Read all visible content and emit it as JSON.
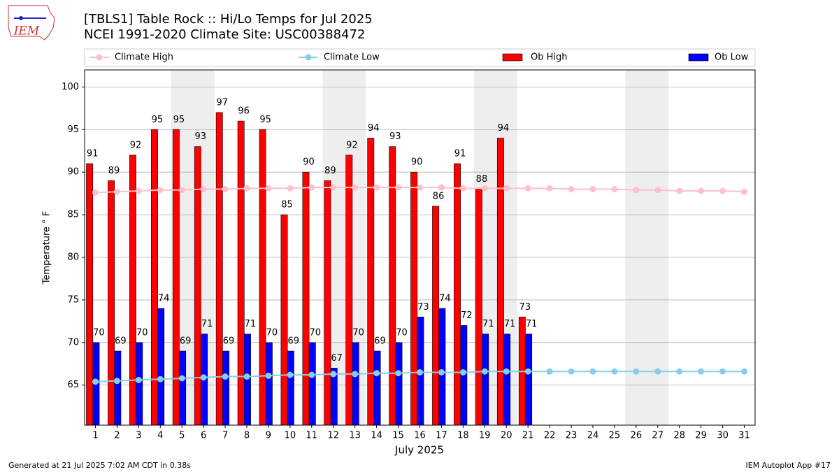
{
  "chart_data": {
    "type": "bar",
    "title": "[TBLS1] Table Rock :: Hi/Lo Temps for Jul 2025",
    "subtitle": "NCEI 1991-2020 Climate Site: USC00388472",
    "x_label": "July 2025",
    "y_label": "Temperature ° F",
    "footer_left": "Generated at 21 Jul 2025 7:02 AM CDT in 0.38s",
    "footer_right": "IEM Autoplot App #17",
    "logo_text": "IEM",
    "x": [
      1,
      2,
      3,
      4,
      5,
      6,
      7,
      8,
      9,
      10,
      11,
      12,
      13,
      14,
      15,
      16,
      17,
      18,
      19,
      20,
      21,
      22,
      23,
      24,
      25,
      26,
      27,
      28,
      29,
      30,
      31
    ],
    "xlim": [
      0.5,
      31.5
    ],
    "xticks": [
      1,
      2,
      3,
      4,
      5,
      6,
      7,
      8,
      9,
      10,
      11,
      12,
      13,
      14,
      15,
      16,
      17,
      18,
      19,
      20,
      21,
      22,
      23,
      24,
      25,
      26,
      27,
      28,
      29,
      30,
      31
    ],
    "ylim": [
      60.3,
      102
    ],
    "yticks": [
      65,
      70,
      75,
      80,
      85,
      90,
      95,
      100
    ],
    "grid": true,
    "weekend_spans": [
      [
        4.5,
        6.5
      ],
      [
        11.5,
        13.5
      ],
      [
        18.5,
        20.5
      ],
      [
        25.5,
        27.5
      ]
    ],
    "series": [
      {
        "name": "Climate High",
        "kind": "line",
        "color": "#ffc0cb",
        "values": [
          87.6,
          87.7,
          87.8,
          87.9,
          87.9,
          88.0,
          88.0,
          88.1,
          88.1,
          88.1,
          88.2,
          88.2,
          88.2,
          88.2,
          88.2,
          88.2,
          88.2,
          88.1,
          88.1,
          88.1,
          88.1,
          88.1,
          88.0,
          88.0,
          88.0,
          87.9,
          87.9,
          87.8,
          87.8,
          87.8,
          87.7
        ]
      },
      {
        "name": "Climate Low",
        "kind": "line",
        "color": "#87ceeb",
        "values": [
          65.4,
          65.5,
          65.6,
          65.7,
          65.8,
          65.9,
          66.0,
          66.0,
          66.1,
          66.2,
          66.2,
          66.3,
          66.3,
          66.4,
          66.4,
          66.5,
          66.5,
          66.5,
          66.6,
          66.6,
          66.6,
          66.6,
          66.6,
          66.6,
          66.6,
          66.6,
          66.6,
          66.6,
          66.6,
          66.6,
          66.6
        ]
      },
      {
        "name": "Ob High",
        "kind": "bar",
        "color": "#ff0000",
        "values": [
          91,
          89,
          92,
          95,
          95,
          93,
          97,
          96,
          95,
          85,
          90,
          89,
          92,
          94,
          93,
          90,
          86,
          91,
          88,
          94,
          73,
          null,
          null,
          null,
          null,
          null,
          null,
          null,
          null,
          null,
          null
        ]
      },
      {
        "name": "Ob Low",
        "kind": "bar",
        "color": "#0000ff",
        "values": [
          70,
          69,
          70,
          74,
          69,
          71,
          69,
          71,
          70,
          69,
          70,
          67,
          70,
          69,
          70,
          73,
          74,
          72,
          71,
          71,
          71,
          null,
          null,
          null,
          null,
          null,
          null,
          null,
          null,
          null,
          null
        ]
      }
    ]
  }
}
